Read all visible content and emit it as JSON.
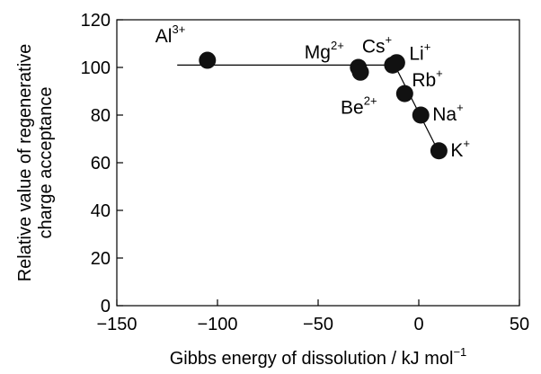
{
  "chart_data": {
    "type": "scatter",
    "title": "",
    "xlabel": "Gibbs energy of dissolution / kJ mol",
    "xlabel_superscript": "−1",
    "ylabel_lines": [
      "Relative value of regenerative",
      "charge acceptance"
    ],
    "xlim": [
      -150,
      50
    ],
    "ylim": [
      0,
      120
    ],
    "xticks": [
      -150,
      -100,
      -50,
      0,
      50
    ],
    "yticks": [
      0,
      20,
      40,
      60,
      80,
      100,
      120
    ],
    "xtick_labels": [
      "−150",
      "−100",
      "−50",
      "0",
      "50"
    ],
    "ytick_labels": [
      "0",
      "20",
      "40",
      "60",
      "80",
      "100",
      "120"
    ],
    "grid": false,
    "points": [
      {
        "ion": "Al",
        "charge": "3+",
        "x": -105,
        "y": 103
      },
      {
        "ion": "Mg",
        "charge": "2+",
        "x": -30,
        "y": 100
      },
      {
        "ion": "Be",
        "charge": "2+",
        "x": -29,
        "y": 98
      },
      {
        "ion": "Cs",
        "charge": "+",
        "x": -13,
        "y": 101
      },
      {
        "ion": "Li",
        "charge": "+",
        "x": -11,
        "y": 102
      },
      {
        "ion": "Rb",
        "charge": "+",
        "x": -7,
        "y": 89
      },
      {
        "ion": "Na",
        "charge": "+",
        "x": 1,
        "y": 80
      },
      {
        "ion": "K",
        "charge": "+",
        "x": 10,
        "y": 65
      }
    ],
    "trend_line": [
      {
        "x": -120,
        "y": 101
      },
      {
        "x": -12,
        "y": 101
      },
      {
        "x": 9,
        "y": 66
      }
    ]
  }
}
